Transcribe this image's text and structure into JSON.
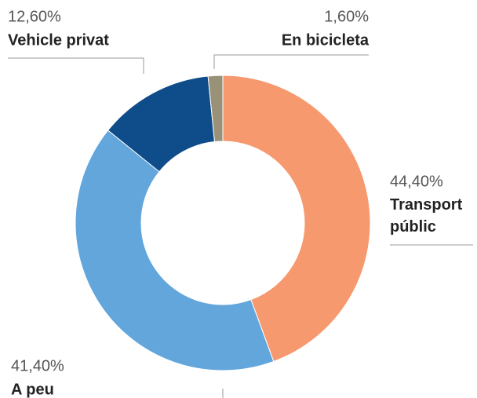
{
  "chart_data": {
    "type": "pie",
    "categories": [
      "Transport públic",
      "A peu",
      "Vehicle privat",
      "En bicicleta"
    ],
    "values": [
      44.4,
      41.4,
      12.6,
      1.6
    ],
    "value_labels": [
      "44,40%",
      "41,40%",
      "12,60%",
      "1,60%"
    ],
    "colors": [
      "#f7996e",
      "#62a6dc",
      "#0f4c8a",
      "#9a9278"
    ],
    "donut": true
  }
}
